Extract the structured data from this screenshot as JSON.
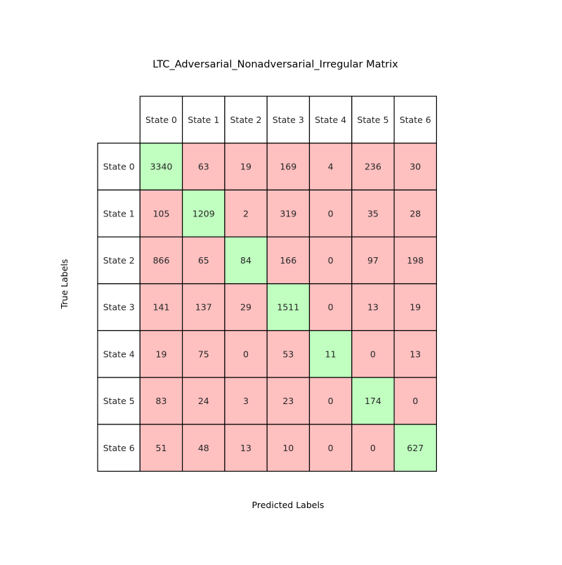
{
  "chart_data": {
    "type": "heatmap",
    "title": "LTC_Adversarial_Nonadversarial_Irregular Matrix",
    "xlabel": "Predicted Labels",
    "ylabel": "True Labels",
    "col_labels": [
      "State 0",
      "State 1",
      "State 2",
      "State 3",
      "State 4",
      "State 5",
      "State 6"
    ],
    "row_labels": [
      "State 0",
      "State 1",
      "State 2",
      "State 3",
      "State 4",
      "State 5",
      "State 6"
    ],
    "values": [
      [
        3340,
        63,
        19,
        169,
        4,
        236,
        30
      ],
      [
        105,
        1209,
        2,
        319,
        0,
        35,
        28
      ],
      [
        866,
        65,
        84,
        166,
        0,
        97,
        198
      ],
      [
        141,
        137,
        29,
        1511,
        0,
        13,
        19
      ],
      [
        19,
        75,
        0,
        53,
        11,
        0,
        13
      ],
      [
        83,
        24,
        3,
        23,
        0,
        174,
        0
      ],
      [
        51,
        48,
        13,
        10,
        0,
        0,
        627
      ]
    ],
    "colors": {
      "diagonal": "#c0ffc0",
      "off_diagonal": "#ffc0c0",
      "header": "#ffffff",
      "border": "#000000",
      "text": "#262626"
    },
    "legend": "none",
    "grid": false
  }
}
